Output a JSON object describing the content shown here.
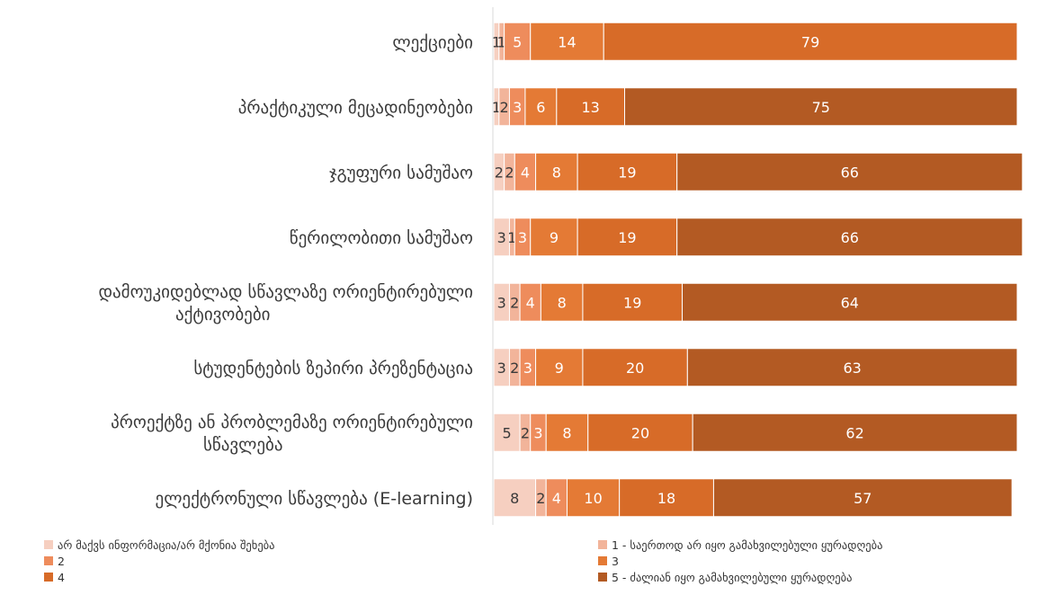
{
  "chart_data": {
    "type": "bar",
    "orientation": "horizontal",
    "stacked": true,
    "categories": [
      [
        "ლექციები"
      ],
      [
        "პრაქტიკული მეცადინეობები"
      ],
      [
        "ჯგუფური სამუშაო"
      ],
      [
        "წერილობითი სამუშაო"
      ],
      [
        "დამოუკიდებლად სწავლაზე ორიენტირებული",
        "აქტივობები"
      ],
      [
        "სტუდენტების ზეპირი პრეზენტაცია"
      ],
      [
        "პროექტზე ან პრობლემაზე ორიენტირებული",
        "სწავლება"
      ],
      [
        "ელექტრონული სწავლება (E-learning)"
      ]
    ],
    "series": [
      {
        "name": "არ მაქვს ინფორმაცია/არ მქონია შეხება",
        "color": "#f6cfc0",
        "values": [
          1,
          1,
          2,
          3,
          3,
          3,
          5,
          8
        ]
      },
      {
        "name": "1 - საერთოდ არ იყო გამახვილებული ყურადღება",
        "color": "#f2b49a",
        "values": [
          1,
          2,
          2,
          1,
          2,
          2,
          2,
          2
        ]
      },
      {
        "name": "2",
        "color": "#ee8c5c",
        "values": [
          5,
          3,
          4,
          3,
          4,
          3,
          3,
          4
        ]
      },
      {
        "name": "3",
        "color": "#e47a35",
        "values": [
          14,
          6,
          8,
          9,
          8,
          9,
          8,
          10
        ]
      },
      {
        "name": "4",
        "color": "#d76b28",
        "values": [
          79,
          13,
          19,
          19,
          19,
          20,
          20,
          18
        ]
      },
      {
        "name": "5 - ძალიან იყო გამახვილებული ყურადღება",
        "color": "#b35a23",
        "values": [
          0,
          75,
          66,
          66,
          64,
          63,
          62,
          57
        ]
      }
    ],
    "xlim": [
      0,
      100
    ],
    "grid": false,
    "legend_position": "bottom"
  }
}
